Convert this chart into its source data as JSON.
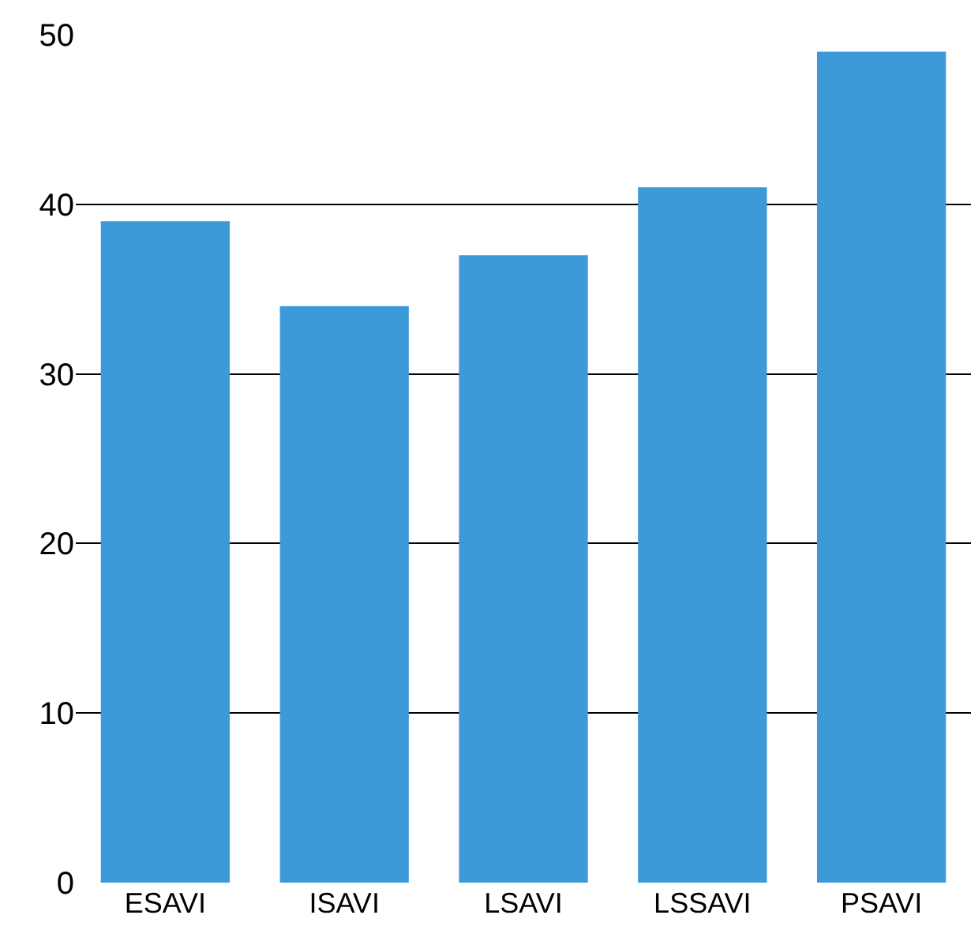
{
  "chart_data": {
    "type": "bar",
    "categories": [
      "ESAVI",
      "ISAVI",
      "LSAVI",
      "LSSAVI",
      "PSAVI"
    ],
    "values": [
      39,
      34,
      37,
      41,
      49
    ],
    "color": "#3d9ad9",
    "ylim": [
      0,
      50
    ],
    "yticks": [
      0,
      10,
      20,
      30,
      40,
      50
    ],
    "grid": "y"
  }
}
